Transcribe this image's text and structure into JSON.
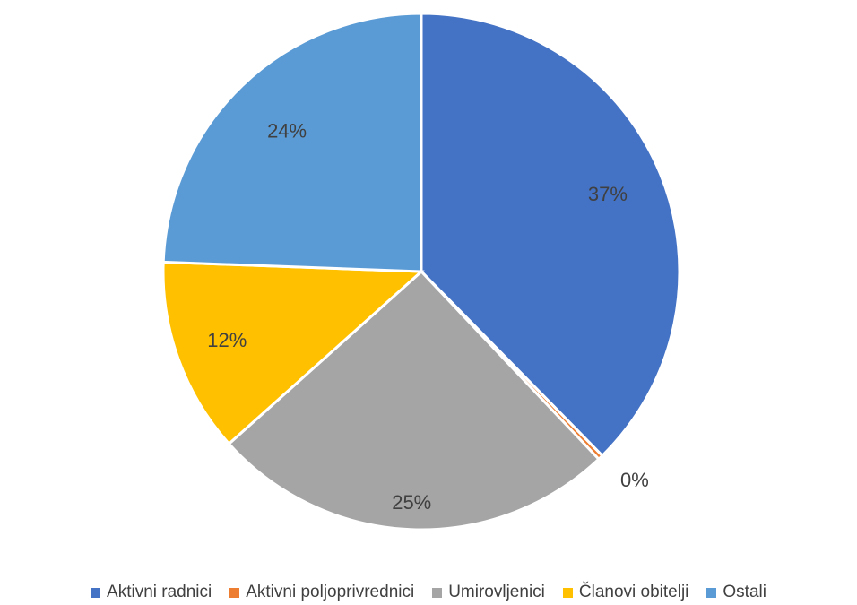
{
  "chart_data": {
    "type": "pie",
    "categories": [
      "Aktivni radnici",
      "Aktivni poljoprivrednici",
      "Umirovljenici",
      "Članovi obitelji",
      "Ostali"
    ],
    "values": [
      37,
      0.3,
      25,
      12,
      24
    ],
    "data_labels": [
      "37%",
      "0%",
      "25%",
      "12%",
      "24%"
    ],
    "colors": [
      "#4472C4",
      "#ED7D31",
      "#A5A5A5",
      "#FFC000",
      "#5B9BD5"
    ],
    "legend_position": "bottom"
  }
}
